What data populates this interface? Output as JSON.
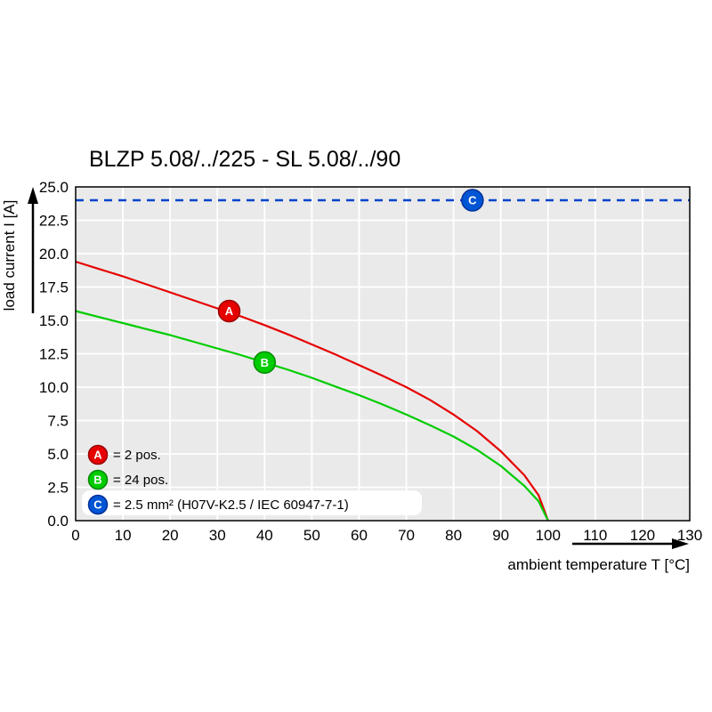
{
  "page": {
    "background": "#ffffff"
  },
  "chart_data": {
    "type": "line",
    "title": "BLZP 5.08/../225 - SL 5.08/../90",
    "xlabel": "ambient temperature T [°C]",
    "ylabel": "load current I [A]",
    "xlim": [
      0,
      130
    ],
    "ylim": [
      0,
      25
    ],
    "x_tick_labels": [
      "0",
      "10",
      "20",
      "30",
      "40",
      "50",
      "60",
      "70",
      "80",
      "90",
      "100",
      "110",
      "120",
      "130"
    ],
    "y_tick_labels": [
      "0.0",
      "2.5",
      "5.0",
      "7.5",
      "10.0",
      "12.5",
      "15.0",
      "17.5",
      "20.0",
      "22.5",
      "25.0"
    ],
    "grid": true,
    "legend_position": "lower-left-inside",
    "colors": {
      "plot_bg": "#eaeaea",
      "grid": "#ffffff",
      "frame": "#000000",
      "limit_line": "#0044cc"
    },
    "series": [
      {
        "name": "A",
        "label": "= 2 pos.",
        "color": "#e60000",
        "ring": "#990000",
        "marker": {
          "x": 32.5,
          "y": 15.7
        },
        "points": [
          [
            0,
            19.4
          ],
          [
            5,
            18.85
          ],
          [
            10,
            18.3
          ],
          [
            15,
            17.7
          ],
          [
            20,
            17.1
          ],
          [
            25,
            16.5
          ],
          [
            30,
            15.9
          ],
          [
            35,
            15.3
          ],
          [
            40,
            14.65
          ],
          [
            45,
            13.95
          ],
          [
            50,
            13.2
          ],
          [
            55,
            12.45
          ],
          [
            60,
            11.65
          ],
          [
            65,
            10.85
          ],
          [
            70,
            10.0
          ],
          [
            75,
            9.05
          ],
          [
            80,
            7.95
          ],
          [
            85,
            6.7
          ],
          [
            90,
            5.2
          ],
          [
            95,
            3.4
          ],
          [
            98,
            1.9
          ],
          [
            100,
            0
          ]
        ]
      },
      {
        "name": "B",
        "label": "= 24 pos.",
        "color": "#00cc00",
        "ring": "#008800",
        "marker": {
          "x": 40,
          "y": 11.85
        },
        "points": [
          [
            0,
            15.7
          ],
          [
            5,
            15.25
          ],
          [
            10,
            14.8
          ],
          [
            15,
            14.35
          ],
          [
            20,
            13.9
          ],
          [
            25,
            13.4
          ],
          [
            30,
            12.9
          ],
          [
            35,
            12.4
          ],
          [
            40,
            11.85
          ],
          [
            45,
            11.3
          ],
          [
            50,
            10.7
          ],
          [
            55,
            10.05
          ],
          [
            60,
            9.4
          ],
          [
            65,
            8.7
          ],
          [
            70,
            7.95
          ],
          [
            75,
            7.15
          ],
          [
            80,
            6.3
          ],
          [
            85,
            5.3
          ],
          [
            90,
            4.1
          ],
          [
            95,
            2.6
          ],
          [
            98,
            1.45
          ],
          [
            100,
            0
          ]
        ]
      },
      {
        "name": "C",
        "label": "= 2.5 mm² (H07V-K2.5 / IEC 60947-7-1)",
        "color": "#0055d4",
        "ring": "#002f99",
        "type": "hline",
        "line_y": 24,
        "marker": {
          "x": 84,
          "y": 24
        }
      }
    ]
  }
}
